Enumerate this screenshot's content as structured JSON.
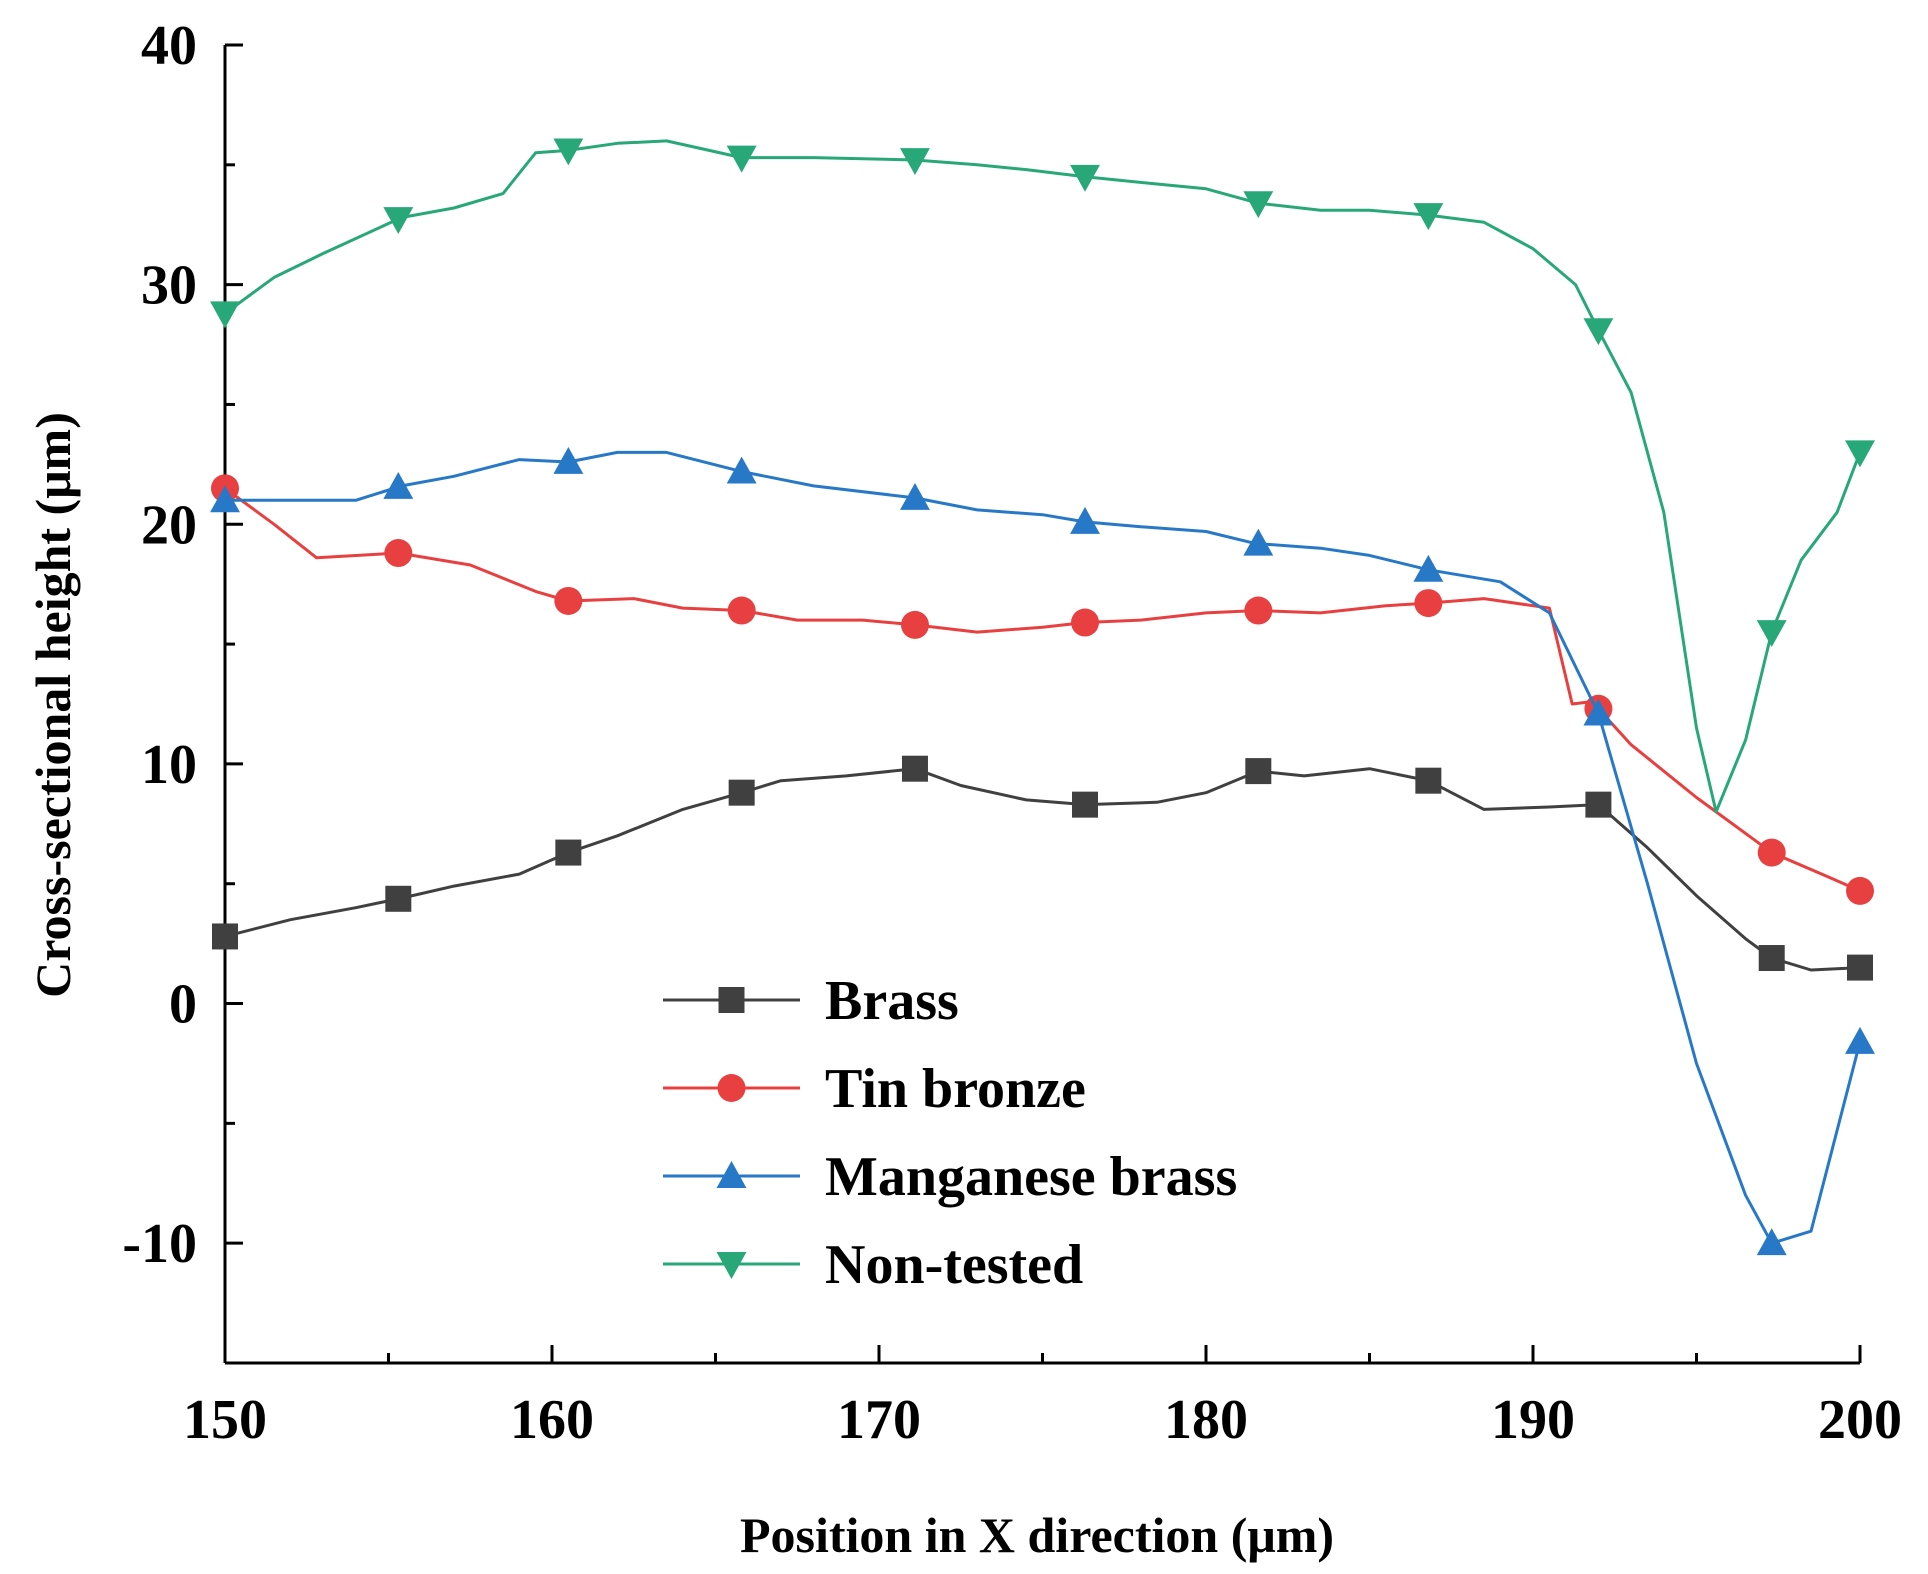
{
  "chart_data": {
    "type": "line",
    "title": "",
    "xlabel": "Position in X direction (μm)",
    "ylabel": "Cross-sectional height (μm)",
    "xlim": [
      150,
      200
    ],
    "ylim": [
      -15,
      40
    ],
    "xticks": [
      150,
      160,
      170,
      180,
      190,
      200
    ],
    "yticks": [
      -10,
      0,
      10,
      20,
      30,
      40
    ],
    "grid": false,
    "legend_position": "bottom-center",
    "series": [
      {
        "name": "Brass",
        "color": "#404040",
        "marker": "square",
        "x": [
          150,
          152,
          154,
          155.4,
          157,
          159,
          160.5,
          162,
          164,
          165.8,
          167,
          169,
          171.1,
          172.5,
          174.5,
          176.3,
          178.5,
          180,
          181.6,
          183,
          185,
          186.8,
          188.5,
          190.5,
          192,
          193.5,
          195,
          196.5,
          197.3,
          198.5,
          200
        ],
        "y": [
          2.8,
          3.5,
          4.0,
          4.4,
          4.9,
          5.4,
          6.3,
          7.0,
          8.1,
          8.8,
          9.3,
          9.5,
          9.8,
          9.1,
          8.5,
          8.3,
          8.4,
          8.8,
          9.7,
          9.5,
          9.8,
          9.3,
          8.1,
          8.2,
          8.3,
          6.5,
          4.5,
          2.7,
          1.9,
          1.4,
          1.5
        ]
      },
      {
        "name": "Tin bronze",
        "color": "#e84040",
        "marker": "circle",
        "x": [
          150,
          151.5,
          152.8,
          155.3,
          157.5,
          159.5,
          160.5,
          162.5,
          164,
          165.8,
          167.5,
          169.5,
          171.1,
          173,
          175,
          176.3,
          178,
          180,
          181.6,
          183.5,
          185.5,
          186.7,
          188.5,
          190.5,
          191.2,
          191.8,
          193,
          195,
          197.3,
          199,
          200
        ],
        "y": [
          21.5,
          20,
          18.6,
          18.8,
          18.3,
          17.2,
          16.8,
          16.9,
          16.5,
          16.4,
          16.0,
          16.0,
          15.8,
          15.5,
          15.7,
          15.9,
          16.0,
          16.3,
          16.4,
          16.3,
          16.6,
          16.7,
          16.9,
          16.5,
          12.5,
          12.6,
          10.8,
          8.6,
          6.3,
          5.3,
          4.7
        ]
      },
      {
        "name": "Manganese brass",
        "color": "#2878c8",
        "marker": "triangle-up",
        "x": [
          150,
          152,
          154,
          155.4,
          157,
          159,
          160.5,
          162,
          163.5,
          165.8,
          168,
          171.1,
          173,
          175,
          176.3,
          178,
          180,
          181.5,
          183.5,
          185,
          186.8,
          189,
          190.5,
          192,
          193.5,
          195,
          196.5,
          197.3,
          198.5,
          200
        ],
        "y": [
          21.0,
          21.0,
          21.0,
          21.6,
          22.0,
          22.7,
          22.6,
          23.0,
          23.0,
          22.2,
          21.6,
          21.1,
          20.6,
          20.4,
          20.1,
          19.9,
          19.7,
          19.2,
          19.0,
          18.7,
          18.1,
          17.6,
          16.3,
          12.1,
          5.0,
          -2.5,
          -8.0,
          -10.0,
          -9.5,
          -1.6
        ]
      },
      {
        "name": "Non-tested",
        "color": "#28a878",
        "marker": "triangle-down",
        "x": [
          150,
          151.5,
          153,
          155.4,
          157,
          158.5,
          159.5,
          160.5,
          162,
          163.5,
          165.8,
          168,
          171.1,
          173,
          174.5,
          176.3,
          178.5,
          180,
          181.6,
          183.5,
          185,
          186.8,
          188.5,
          190,
          191.3,
          192,
          193,
          194,
          195,
          195.6,
          196.5,
          197.3,
          198.2,
          199.3,
          200
        ],
        "y": [
          28.8,
          30.3,
          31.3,
          32.8,
          33.2,
          33.8,
          35.5,
          35.6,
          35.9,
          36.0,
          35.3,
          35.3,
          35.2,
          35.0,
          34.8,
          34.5,
          34.2,
          34.0,
          33.4,
          33.1,
          33.1,
          32.9,
          32.6,
          31.5,
          30.0,
          28.1,
          25.5,
          20.5,
          11.5,
          8.0,
          11.0,
          15.5,
          18.5,
          20.5,
          23.0
        ]
      }
    ]
  }
}
